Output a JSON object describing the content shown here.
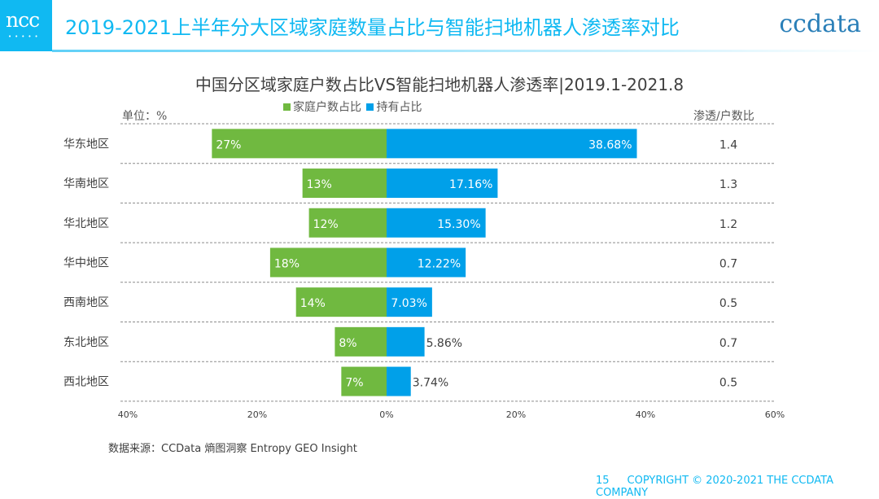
{
  "header": {
    "logo": "ncc",
    "title": "2019-2021上半年分大区域家庭数量占比与智能扫地机器人渗透率对比",
    "brand": "ccdata"
  },
  "chart_data": {
    "type": "bar",
    "title": "中国分区域家庭户数占比VS智能扫地机器人渗透率|2019.1-2021.8",
    "unit": "单位：%",
    "ratio_header": "渗透/户数比",
    "categories": [
      "华东地区",
      "华南地区",
      "华北地区",
      "华中地区",
      "西南地区",
      "东北地区",
      "西北地区"
    ],
    "series": [
      {
        "name": "家庭户数占比",
        "color": "#70b940",
        "direction": "left",
        "values": [
          27,
          13,
          12,
          18,
          14,
          8,
          7
        ],
        "labels": [
          "27%",
          "13%",
          "12%",
          "18%",
          "14%",
          "8%",
          "7%"
        ]
      },
      {
        "name": "持有占比",
        "color": "#00a0e9",
        "direction": "right",
        "values": [
          38.68,
          17.16,
          15.3,
          12.22,
          7.03,
          5.86,
          3.74
        ],
        "labels": [
          "38.68%",
          "17.16%",
          "15.30%",
          "12.22%",
          "7.03%",
          "5.86%",
          "3.74%"
        ]
      }
    ],
    "ratios": [
      "1.4",
      "1.3",
      "1.2",
      "0.7",
      "0.5",
      "0.7",
      "0.5"
    ],
    "xlim": [
      -40,
      60
    ],
    "xticks": [
      "40%",
      "20%",
      "0%",
      "20%",
      "40%",
      "60%"
    ],
    "legend": "top"
  },
  "source": "数据来源：CCData 熵图洞察 Entropy GEO Insight",
  "footer": {
    "page": "15",
    "copyright": "COPYRIGHT © 2020-2021 THE CCDATA COMPANY"
  }
}
